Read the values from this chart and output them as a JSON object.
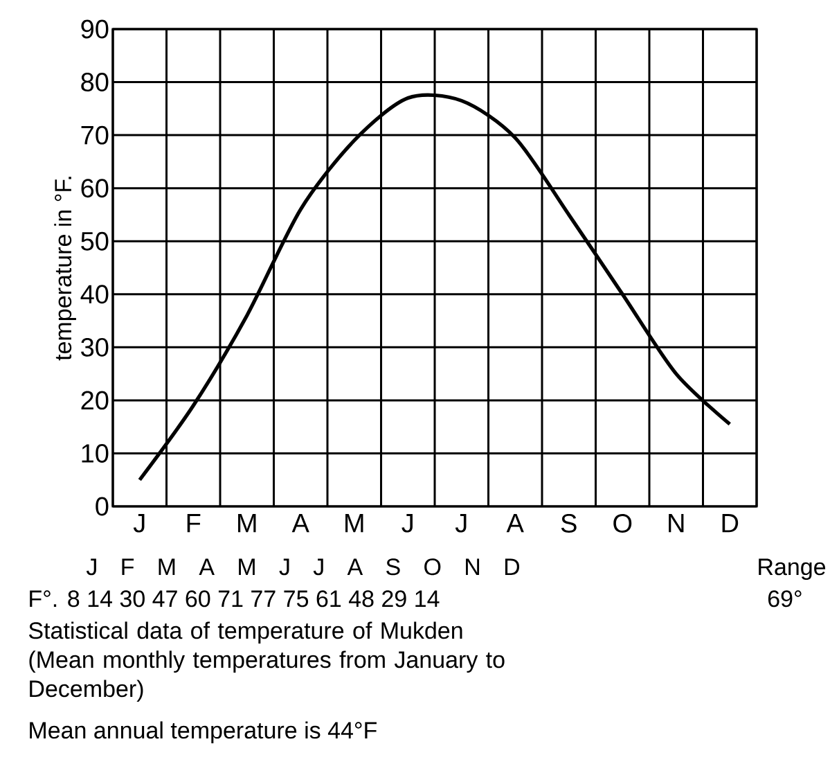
{
  "chart_data": {
    "type": "line",
    "ylabel": "temperature in °F.",
    "color": "#000000",
    "marker": "none",
    "line_style": "solid",
    "grid": true,
    "categories": [
      "J",
      "F",
      "M",
      "A",
      "M",
      "J",
      "J",
      "A",
      "S",
      "O",
      "N",
      "D"
    ],
    "values": [
      5,
      19,
      36,
      56,
      69,
      77,
      76.5,
      69.5,
      55,
      40,
      25,
      15.5
    ],
    "ylim": [
      0,
      90
    ],
    "yticks": [
      0,
      10,
      20,
      30,
      40,
      50,
      60,
      70,
      80,
      90
    ],
    "annotations": [
      "J F M A M J J A S O N D",
      "Range",
      "F°. 8 14 30 47 60 71 77 75 61 48 29 14",
      "69°",
      "Statistical data of temperature of Mukden (Mean monthly temperatures from January to December)",
      "Mean annual temperature is 44°F"
    ]
  }
}
